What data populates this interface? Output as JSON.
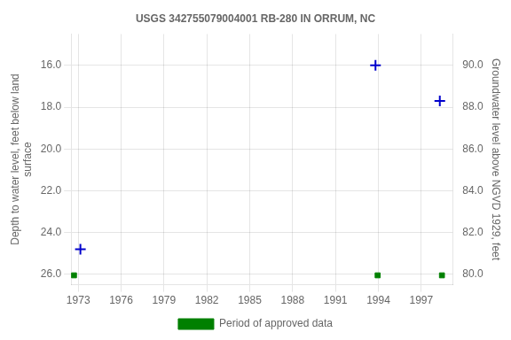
{
  "chart_data": {
    "type": "scatter",
    "title": "USGS 342755079004001 RB-280 IN ORRUM, NC",
    "y_label": "Depth to water level, feet below land\nsurface",
    "y2_label": "Groundwater level above NGVD 1929, feet",
    "xlim": [
      1972.5,
      1999.2
    ],
    "xticks": [
      1973,
      1976,
      1979,
      1982,
      1985,
      1988,
      1991,
      1994,
      1997
    ],
    "ylim": [
      26.5,
      14.5
    ],
    "yticks": [
      {
        "value": 16.0,
        "label": "16.0"
      },
      {
        "value": 18.0,
        "label": "18.0"
      },
      {
        "value": 20.0,
        "label": "20.0"
      },
      {
        "value": 22.0,
        "label": "22.0"
      },
      {
        "value": 24.0,
        "label": "24.0"
      },
      {
        "value": 26.0,
        "label": "26.0"
      }
    ],
    "y2lim": [
      79.5,
      91.5
    ],
    "y2ticks": [
      {
        "value": 80.0,
        "label": "80.0"
      },
      {
        "value": 82.0,
        "label": "82.0"
      },
      {
        "value": 84.0,
        "label": "84.0"
      },
      {
        "value": 86.0,
        "label": "86.0"
      },
      {
        "value": 88.0,
        "label": "88.0"
      },
      {
        "value": 90.0,
        "label": "90.0"
      }
    ],
    "grid": true,
    "legend": "bottom",
    "series": [
      {
        "x": [
          1973.15,
          1993.8,
          1998.3
        ],
        "values": [
          24.8,
          16.0,
          17.7
        ],
        "color": "#0000cc",
        "marker": "plus"
      },
      {
        "name": "Period of approved data",
        "x": [
          1972.7,
          1993.95,
          1998.45
        ],
        "values": [
          26.05,
          26.05,
          26.05
        ],
        "color": "#008000",
        "marker": "square"
      }
    ]
  }
}
